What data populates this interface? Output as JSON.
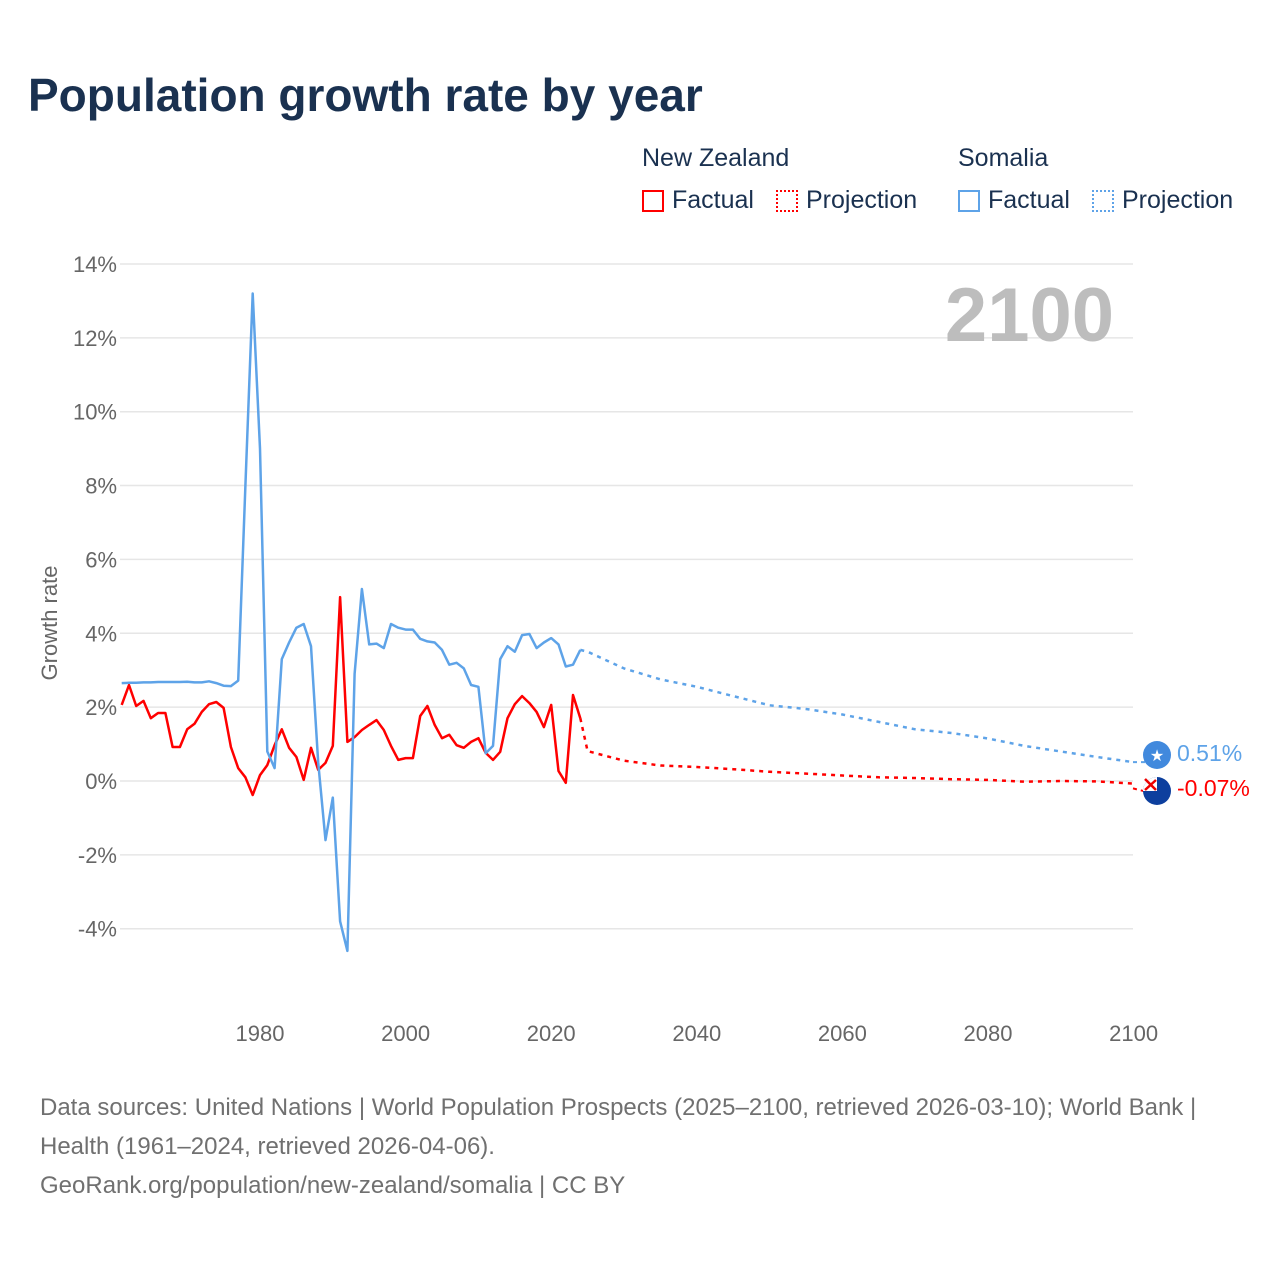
{
  "title": "Population growth rate by year",
  "legend": {
    "groups": [
      {
        "name": "New Zealand",
        "color": "#ff0000",
        "factual": "Factual",
        "projection": "Projection"
      },
      {
        "name": "Somalia",
        "color": "#5ea3e8",
        "factual": "Factual",
        "projection": "Projection"
      }
    ]
  },
  "current_year": "2100",
  "end_labels": {
    "somalia": "0.51%",
    "new_zealand": "-0.07%"
  },
  "footer": {
    "sources": "Data sources: United Nations | World Population Prospects (2025–2100, retrieved 2026-03-10); World Bank | Health (1961–2024, retrieved 2026-04-06).",
    "credit": "GeoRank.org/population/new-zealand/somalia | CC BY"
  },
  "chart_data": {
    "type": "line",
    "title": "Population growth rate by year",
    "xlabel": "",
    "ylabel": "Growth rate",
    "xlim": [
      1961,
      2100
    ],
    "ylim": [
      -5,
      14
    ],
    "x_ticks": [
      1980,
      2000,
      2020,
      2040,
      2060,
      2080,
      2100
    ],
    "x_tick_labels": [
      "1980",
      "2000",
      "2020",
      "2040",
      "2060",
      "2080",
      "2100"
    ],
    "y_ticks": [
      -4,
      -2,
      0,
      2,
      4,
      6,
      8,
      10,
      12,
      14
    ],
    "y_tick_labels": [
      "-4%",
      "-2%",
      "0%",
      "2%",
      "4%",
      "6%",
      "8%",
      "10%",
      "12%",
      "14%"
    ],
    "grid": true,
    "legend_position": "top-right",
    "series": [
      {
        "name": "New Zealand Factual",
        "color": "#ff0000",
        "style": "solid",
        "start_year": 1961,
        "values": [
          2.06,
          2.6,
          2.03,
          2.17,
          1.7,
          1.84,
          1.84,
          0.92,
          0.92,
          1.4,
          1.55,
          1.87,
          2.08,
          2.14,
          1.98,
          0.92,
          0.35,
          0.1,
          -0.38,
          0.16,
          0.43,
          0.97,
          1.4,
          0.9,
          0.65,
          0.03,
          0.9,
          0.3,
          0.49,
          0.95,
          4.98,
          1.06,
          1.19,
          1.38,
          1.52,
          1.65,
          1.38,
          0.95,
          0.57,
          0.62,
          0.62,
          1.76,
          2.03,
          1.52,
          1.16,
          1.25,
          0.97,
          0.9,
          1.06,
          1.16,
          0.76,
          0.57,
          0.79,
          1.7,
          2.08,
          2.3,
          2.11,
          1.87,
          1.46,
          2.06,
          0.27,
          -0.05,
          2.33,
          1.7
        ]
      },
      {
        "name": "New Zealand Projection",
        "color": "#ff0000",
        "style": "dotted",
        "x": [
          2024,
          2025,
          2030,
          2035,
          2040,
          2045,
          2050,
          2055,
          2060,
          2065,
          2070,
          2075,
          2080,
          2085,
          2090,
          2095,
          2100
        ],
        "values": [
          1.7,
          0.81,
          0.55,
          0.42,
          0.38,
          0.32,
          0.25,
          0.2,
          0.15,
          0.1,
          0.08,
          0.05,
          0.03,
          -0.02,
          0.0,
          -0.01,
          -0.07
        ]
      },
      {
        "name": "Somalia Factual",
        "color": "#5ea3e8",
        "style": "solid",
        "start_year": 1961,
        "values": [
          2.65,
          2.66,
          2.66,
          2.67,
          2.67,
          2.68,
          2.68,
          2.68,
          2.68,
          2.69,
          2.67,
          2.67,
          2.7,
          2.65,
          2.58,
          2.57,
          2.72,
          8.0,
          13.2,
          9.0,
          0.8,
          0.35,
          3.3,
          3.75,
          4.15,
          4.25,
          3.65,
          0.5,
          -1.6,
          -0.45,
          -3.8,
          -4.6,
          2.9,
          5.2,
          3.7,
          3.72,
          3.6,
          4.25,
          4.15,
          4.1,
          4.1,
          3.85,
          3.78,
          3.75,
          3.55,
          3.15,
          3.2,
          3.05,
          2.6,
          2.55,
          0.75,
          0.95,
          3.3,
          3.65,
          3.5,
          3.95,
          3.98,
          3.6,
          3.75,
          3.87,
          3.7,
          3.1,
          3.15,
          3.55
        ]
      },
      {
        "name": "Somalia Projection",
        "color": "#5ea3e8",
        "style": "dotted",
        "x": [
          2024,
          2025,
          2030,
          2035,
          2040,
          2045,
          2050,
          2055,
          2060,
          2065,
          2070,
          2075,
          2080,
          2085,
          2090,
          2095,
          2100
        ],
        "values": [
          3.55,
          3.5,
          3.05,
          2.75,
          2.55,
          2.3,
          2.05,
          1.95,
          1.8,
          1.6,
          1.4,
          1.3,
          1.15,
          0.95,
          0.8,
          0.65,
          0.51
        ]
      }
    ]
  }
}
